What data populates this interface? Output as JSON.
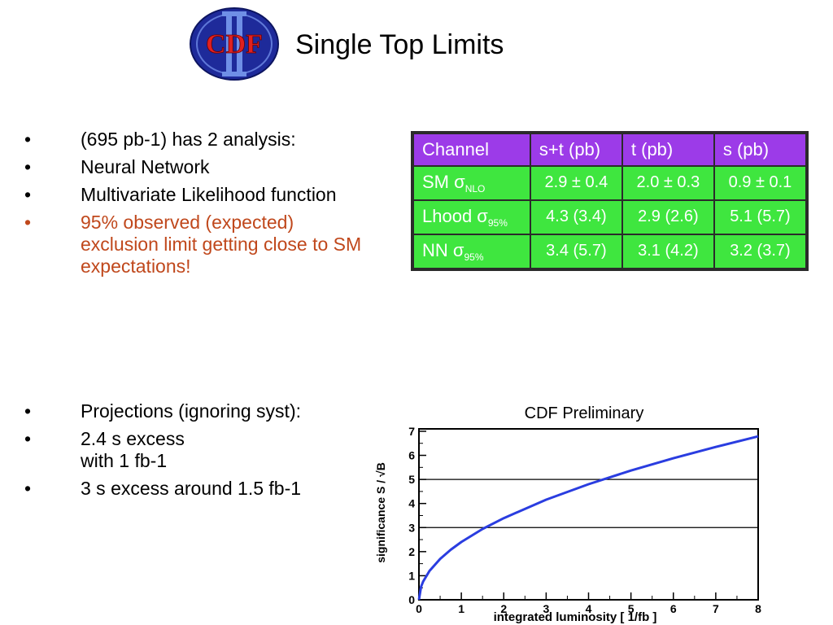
{
  "slide": {
    "title": "Single Top Limits",
    "logo_text": "CDF"
  },
  "bullets_top": [
    {
      "text": "(695 pb-1) has 2 analysis:",
      "color": "#000000"
    },
    {
      "text": "Neural Network",
      "color": "#000000"
    },
    {
      "text": "Multivariate Likelihood function",
      "color": "#000000"
    },
    {
      "text": "95% observed (expected) exclusion limit getting close to SM expectations!",
      "color": "#c0481c"
    }
  ],
  "bullets_bottom": [
    {
      "text": "Projections (ignoring syst):"
    },
    {
      "text": "2.4 s excess",
      "text2": "with 1 fb-1"
    },
    {
      "text": "3 s excess around 1.5 fb-1"
    }
  ],
  "table": {
    "header_color": "#9c3be8",
    "cell_color": "#3fe63f",
    "headers": [
      "Channel",
      "s+t (pb)",
      "t (pb)",
      "s (pb)"
    ],
    "rows": [
      {
        "channel": "SM  σ",
        "channel_sub": "NLO",
        "values": [
          "2.9 ± 0.4",
          "2.0 ± 0.3",
          "0.9 ± 0.1"
        ]
      },
      {
        "channel": "Lhood σ",
        "channel_sub": "95%",
        "values": [
          "4.3 (3.4)",
          "2.9 (2.6)",
          "5.1 (5.7)"
        ]
      },
      {
        "channel": "NN σ",
        "channel_sub": "95%",
        "values": [
          "3.4 (5.7)",
          "3.1 (4.2)",
          "3.2 (3.7)"
        ]
      }
    ]
  },
  "chart_data": {
    "type": "line",
    "title": "CDF Preliminary",
    "xlabel": "integrated luminosity [ 1/fb ]",
    "ylabel": "significance S / √B",
    "xlim": [
      0,
      8
    ],
    "ylim": [
      0,
      7.1
    ],
    "x_ticks": [
      "0",
      "1",
      "2",
      "3",
      "4",
      "5",
      "6",
      "7",
      "8"
    ],
    "y_ticks": [
      "0",
      "1",
      "2",
      "3",
      "4",
      "5",
      "6",
      "7"
    ],
    "reference_lines": [
      3,
      5
    ],
    "series": [
      {
        "color": "#2a3de0",
        "x": [
          0,
          0.05,
          0.1,
          0.25,
          0.5,
          0.75,
          1,
          1.5,
          2,
          3,
          4,
          5,
          6,
          7,
          8
        ],
        "y": [
          0,
          0.54,
          0.76,
          1.2,
          1.7,
          2.08,
          2.4,
          2.94,
          3.39,
          4.16,
          4.8,
          5.37,
          5.88,
          6.35,
          6.79
        ]
      }
    ]
  }
}
